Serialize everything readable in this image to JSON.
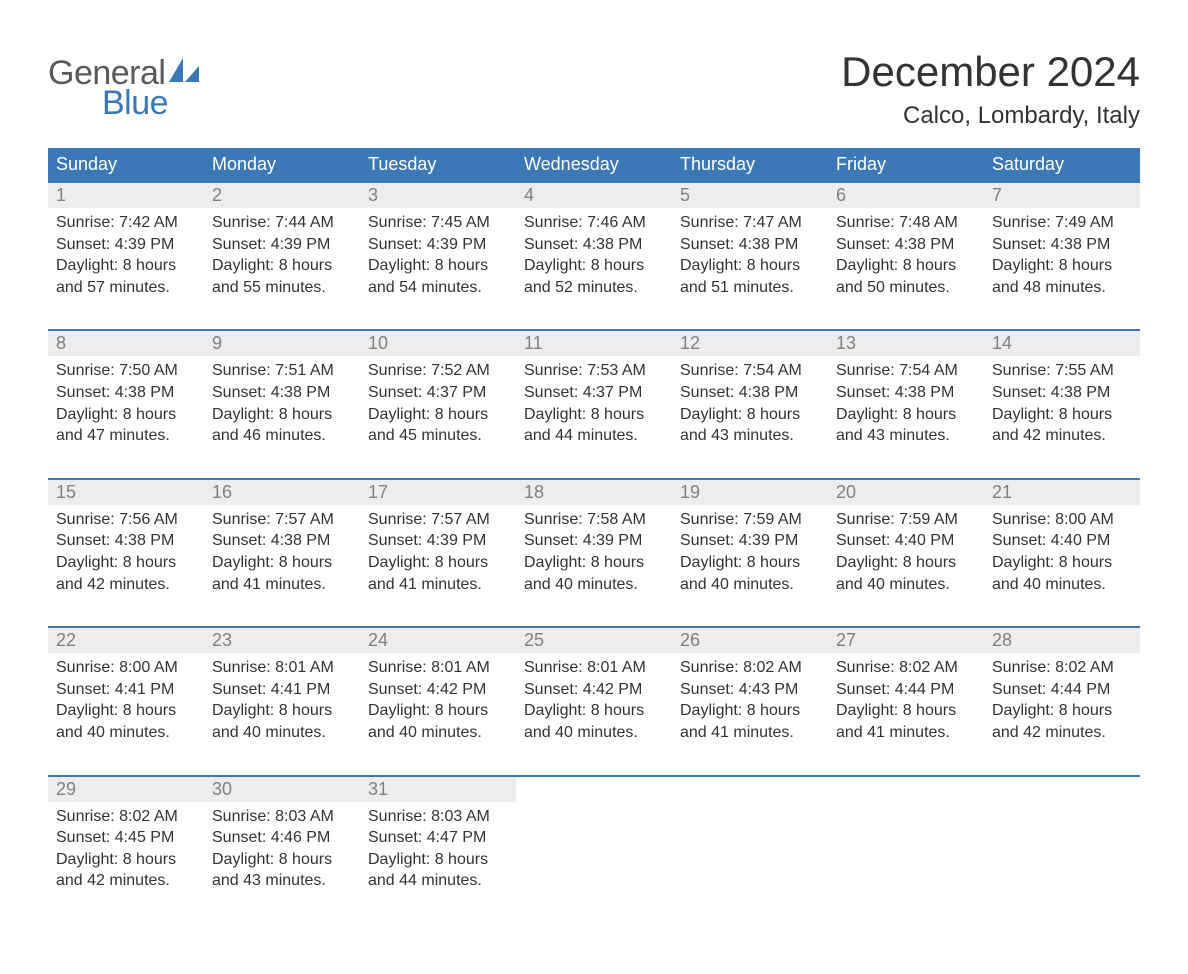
{
  "brand": {
    "top": "General",
    "bottom": "Blue"
  },
  "title": "December 2024",
  "location": "Calco, Lombardy, Italy",
  "colors": {
    "header_bg": "#3b78b5",
    "header_text": "#ffffff",
    "daynum_bg": "#ededed",
    "daynum_text": "#808080",
    "body_text": "#333333",
    "brand_gray": "#5a5a5a",
    "brand_blue": "#3b78b5",
    "page_bg": "#ffffff"
  },
  "day_labels": [
    "Sunday",
    "Monday",
    "Tuesday",
    "Wednesday",
    "Thursday",
    "Friday",
    "Saturday"
  ],
  "weeks": [
    [
      {
        "n": "1",
        "sr": "7:42 AM",
        "ss": "4:39 PM",
        "dl": "8 hours and 57 minutes."
      },
      {
        "n": "2",
        "sr": "7:44 AM",
        "ss": "4:39 PM",
        "dl": "8 hours and 55 minutes."
      },
      {
        "n": "3",
        "sr": "7:45 AM",
        "ss": "4:39 PM",
        "dl": "8 hours and 54 minutes."
      },
      {
        "n": "4",
        "sr": "7:46 AM",
        "ss": "4:38 PM",
        "dl": "8 hours and 52 minutes."
      },
      {
        "n": "5",
        "sr": "7:47 AM",
        "ss": "4:38 PM",
        "dl": "8 hours and 51 minutes."
      },
      {
        "n": "6",
        "sr": "7:48 AM",
        "ss": "4:38 PM",
        "dl": "8 hours and 50 minutes."
      },
      {
        "n": "7",
        "sr": "7:49 AM",
        "ss": "4:38 PM",
        "dl": "8 hours and 48 minutes."
      }
    ],
    [
      {
        "n": "8",
        "sr": "7:50 AM",
        "ss": "4:38 PM",
        "dl": "8 hours and 47 minutes."
      },
      {
        "n": "9",
        "sr": "7:51 AM",
        "ss": "4:38 PM",
        "dl": "8 hours and 46 minutes."
      },
      {
        "n": "10",
        "sr": "7:52 AM",
        "ss": "4:37 PM",
        "dl": "8 hours and 45 minutes."
      },
      {
        "n": "11",
        "sr": "7:53 AM",
        "ss": "4:37 PM",
        "dl": "8 hours and 44 minutes."
      },
      {
        "n": "12",
        "sr": "7:54 AM",
        "ss": "4:38 PM",
        "dl": "8 hours and 43 minutes."
      },
      {
        "n": "13",
        "sr": "7:54 AM",
        "ss": "4:38 PM",
        "dl": "8 hours and 43 minutes."
      },
      {
        "n": "14",
        "sr": "7:55 AM",
        "ss": "4:38 PM",
        "dl": "8 hours and 42 minutes."
      }
    ],
    [
      {
        "n": "15",
        "sr": "7:56 AM",
        "ss": "4:38 PM",
        "dl": "8 hours and 42 minutes."
      },
      {
        "n": "16",
        "sr": "7:57 AM",
        "ss": "4:38 PM",
        "dl": "8 hours and 41 minutes."
      },
      {
        "n": "17",
        "sr": "7:57 AM",
        "ss": "4:39 PM",
        "dl": "8 hours and 41 minutes."
      },
      {
        "n": "18",
        "sr": "7:58 AM",
        "ss": "4:39 PM",
        "dl": "8 hours and 40 minutes."
      },
      {
        "n": "19",
        "sr": "7:59 AM",
        "ss": "4:39 PM",
        "dl": "8 hours and 40 minutes."
      },
      {
        "n": "20",
        "sr": "7:59 AM",
        "ss": "4:40 PM",
        "dl": "8 hours and 40 minutes."
      },
      {
        "n": "21",
        "sr": "8:00 AM",
        "ss": "4:40 PM",
        "dl": "8 hours and 40 minutes."
      }
    ],
    [
      {
        "n": "22",
        "sr": "8:00 AM",
        "ss": "4:41 PM",
        "dl": "8 hours and 40 minutes."
      },
      {
        "n": "23",
        "sr": "8:01 AM",
        "ss": "4:41 PM",
        "dl": "8 hours and 40 minutes."
      },
      {
        "n": "24",
        "sr": "8:01 AM",
        "ss": "4:42 PM",
        "dl": "8 hours and 40 minutes."
      },
      {
        "n": "25",
        "sr": "8:01 AM",
        "ss": "4:42 PM",
        "dl": "8 hours and 40 minutes."
      },
      {
        "n": "26",
        "sr": "8:02 AM",
        "ss": "4:43 PM",
        "dl": "8 hours and 41 minutes."
      },
      {
        "n": "27",
        "sr": "8:02 AM",
        "ss": "4:44 PM",
        "dl": "8 hours and 41 minutes."
      },
      {
        "n": "28",
        "sr": "8:02 AM",
        "ss": "4:44 PM",
        "dl": "8 hours and 42 minutes."
      }
    ],
    [
      {
        "n": "29",
        "sr": "8:02 AM",
        "ss": "4:45 PM",
        "dl": "8 hours and 42 minutes."
      },
      {
        "n": "30",
        "sr": "8:03 AM",
        "ss": "4:46 PM",
        "dl": "8 hours and 43 minutes."
      },
      {
        "n": "31",
        "sr": "8:03 AM",
        "ss": "4:47 PM",
        "dl": "8 hours and 44 minutes."
      },
      null,
      null,
      null,
      null
    ]
  ],
  "labels": {
    "sunrise": "Sunrise: ",
    "sunset": "Sunset: ",
    "daylight": "Daylight: "
  }
}
